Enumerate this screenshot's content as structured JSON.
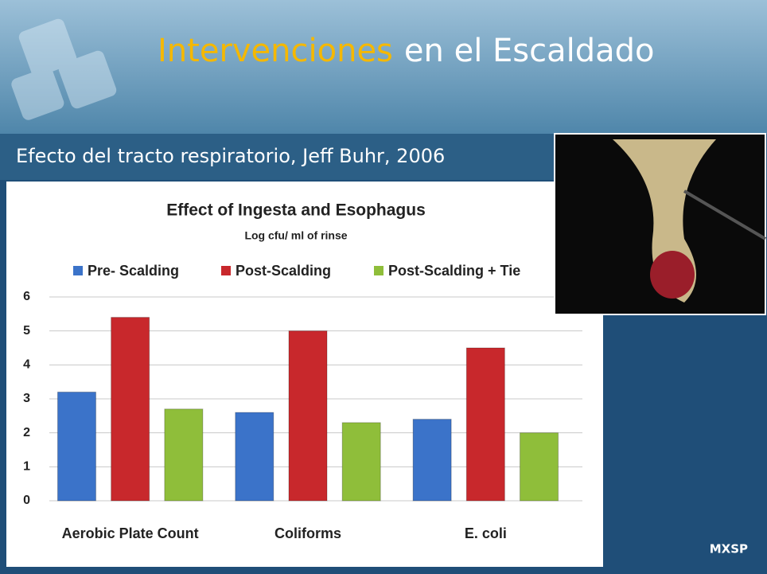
{
  "slide": {
    "title_highlight": "Intervenciones",
    "title_rest": "en el Escaldado",
    "subtitle": "Efecto del tracto respiratorio, Jeff Buhr, 2006",
    "footer": "MXSP"
  },
  "chart_data": {
    "type": "bar",
    "title": "Effect of Ingesta and Esophagus",
    "subtitle": "Log cfu/ ml of rinse",
    "categories": [
      "Aerobic Plate Count",
      "Coliforms",
      "E. coli"
    ],
    "series": [
      {
        "name": "Pre- Scalding",
        "color": "#3b73c9",
        "values": [
          3.2,
          2.6,
          2.4
        ]
      },
      {
        "name": "Post-Scalding",
        "color": "#c8282c",
        "values": [
          5.4,
          5.0,
          4.5
        ]
      },
      {
        "name": "Post-Scalding + Tie",
        "color": "#8fbe3a",
        "values": [
          2.7,
          2.3,
          2.0
        ]
      }
    ],
    "ylim": [
      0,
      6
    ],
    "yticks": [
      0,
      1,
      2,
      3,
      4,
      5,
      6
    ],
    "grid": true,
    "legend": "top"
  }
}
